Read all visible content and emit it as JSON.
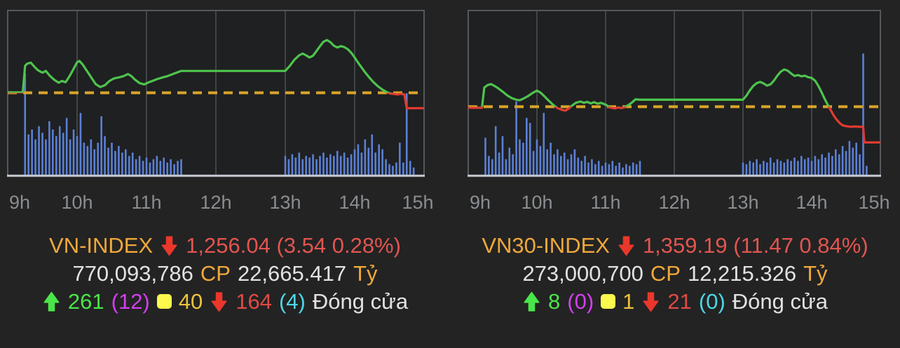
{
  "page": {
    "background": "#232323"
  },
  "colors": {
    "page_bg": "#232323",
    "chart_bg": "#1f2021",
    "border": "#55585c",
    "grid": "#4e5054",
    "baseline": "#c9cdd6",
    "bar_blue": "#5b80d5",
    "line_green": "#4ec44e",
    "line_red": "#e23a32",
    "dash_yellow": "#d9a52a",
    "axis_label": "#8a8d91",
    "orange": "#f0a83c",
    "red_text": "#e25550",
    "red_icon": "#ea372b",
    "white": "#e2e2e2",
    "green": "#49e549",
    "magenta": "#d33ff0",
    "yellow_square": "#fcf84e",
    "yellow_text": "#eac33d",
    "red_number": "#e04a44",
    "cyan": "#4cd6e6"
  },
  "panels": [
    {
      "index_label": "VN-INDEX",
      "direction": "down",
      "change_text": "1,256.04 (3.54 0.28%)",
      "shares": "770,093,786",
      "shares_unit": "CP",
      "value": "22,665.417",
      "value_unit": "Tỷ",
      "advancers": "261",
      "ceiling": "(12)",
      "unchanged": "40",
      "decliners": "164",
      "floor": "(4)",
      "session": "Đóng cửa"
    },
    {
      "index_label": "VN30-INDEX",
      "direction": "down",
      "change_text": "1,359.19 (11.47 0.84%)",
      "shares": "273,000,700",
      "shares_unit": "CP",
      "value": "12,215.326",
      "value_unit": "Tỷ",
      "advancers": "8",
      "ceiling": "(0)",
      "unchanged": "1",
      "decliners": "21",
      "floor": "(0)",
      "session": "Đóng cửa"
    }
  ],
  "chart_data": [
    {
      "type": "line",
      "title": "VN-INDEX intraday",
      "x_unit": "minutes_after_9h",
      "x_range": [
        0,
        360
      ],
      "hours": [
        "9h",
        "10h",
        "11h",
        "12h",
        "13h",
        "14h",
        "15h"
      ],
      "grid": "vertical-hourly",
      "legend": "none",
      "ref_value": 1259.58,
      "close": 1256.04,
      "ylim": [
        1240.5,
        1278.5
      ],
      "volume_unit": "fraction_of_plot_height",
      "price": [
        [
          0,
          1259.7
        ],
        [
          13,
          1259.7
        ],
        [
          15,
          1265.8
        ],
        [
          17,
          1266.3
        ],
        [
          20,
          1266.5
        ],
        [
          23,
          1265.6
        ],
        [
          26,
          1264.8
        ],
        [
          30,
          1264.2
        ],
        [
          33,
          1264.6
        ],
        [
          36,
          1263.6
        ],
        [
          40,
          1262.6
        ],
        [
          44,
          1261.9
        ],
        [
          47,
          1262.3
        ],
        [
          50,
          1262.0
        ],
        [
          53,
          1263.2
        ],
        [
          56,
          1264.6
        ],
        [
          60,
          1266.6
        ],
        [
          62,
          1266.9
        ],
        [
          65,
          1266.0
        ],
        [
          68,
          1264.8
        ],
        [
          72,
          1263.2
        ],
        [
          76,
          1261.6
        ],
        [
          80,
          1260.9
        ],
        [
          84,
          1261.3
        ],
        [
          88,
          1262.3
        ],
        [
          92,
          1262.9
        ],
        [
          96,
          1263.1
        ],
        [
          100,
          1263.4
        ],
        [
          104,
          1263.9
        ],
        [
          107,
          1263.4
        ],
        [
          110,
          1262.6
        ],
        [
          114,
          1261.8
        ],
        [
          118,
          1261.5
        ],
        [
          122,
          1262.0
        ],
        [
          126,
          1262.4
        ],
        [
          130,
          1262.8
        ],
        [
          134,
          1263.1
        ],
        [
          138,
          1263.4
        ],
        [
          142,
          1263.8
        ],
        [
          146,
          1264.2
        ],
        [
          150,
          1264.6
        ],
        [
          240,
          1264.6
        ],
        [
          244,
          1265.8
        ],
        [
          248,
          1267.2
        ],
        [
          252,
          1268.2
        ],
        [
          255,
          1268.6
        ],
        [
          258,
          1268.2
        ],
        [
          261,
          1267.7
        ],
        [
          264,
          1268.1
        ],
        [
          267,
          1269.2
        ],
        [
          270,
          1270.3
        ],
        [
          273,
          1271.3
        ],
        [
          276,
          1271.7
        ],
        [
          279,
          1271.2
        ],
        [
          282,
          1270.4
        ],
        [
          285,
          1270.0
        ],
        [
          288,
          1270.3
        ],
        [
          291,
          1270.1
        ],
        [
          294,
          1269.6
        ],
        [
          297,
          1268.8
        ],
        [
          300,
          1267.7
        ],
        [
          303,
          1266.5
        ],
        [
          306,
          1265.4
        ],
        [
          309,
          1264.3
        ],
        [
          312,
          1263.3
        ],
        [
          316,
          1262.1
        ],
        [
          320,
          1261.1
        ],
        [
          324,
          1260.3
        ],
        [
          328,
          1259.7
        ],
        [
          331,
          1259.4
        ],
        [
          334,
          1259.3
        ],
        [
          337,
          1259.2
        ],
        [
          340,
          1259.35
        ],
        [
          343,
          1259.2
        ],
        [
          345,
          1256.04
        ],
        [
          360,
          1256.04
        ]
      ],
      "volume": [
        [
          15,
          0.62
        ],
        [
          18,
          0.25
        ],
        [
          21,
          0.28
        ],
        [
          24,
          0.22
        ],
        [
          27,
          0.3
        ],
        [
          30,
          0.26
        ],
        [
          33,
          0.22
        ],
        [
          36,
          0.33
        ],
        [
          39,
          0.28
        ],
        [
          42,
          0.24
        ],
        [
          45,
          0.3
        ],
        [
          48,
          0.26
        ],
        [
          51,
          0.35
        ],
        [
          54,
          0.22
        ],
        [
          57,
          0.28
        ],
        [
          60,
          0.24
        ],
        [
          63,
          0.38
        ],
        [
          66,
          0.2
        ],
        [
          69,
          0.18
        ],
        [
          72,
          0.22
        ],
        [
          75,
          0.16
        ],
        [
          78,
          0.2
        ],
        [
          81,
          0.36
        ],
        [
          84,
          0.24
        ],
        [
          87,
          0.17
        ],
        [
          90,
          0.2
        ],
        [
          93,
          0.15
        ],
        [
          96,
          0.18
        ],
        [
          99,
          0.14
        ],
        [
          102,
          0.16
        ],
        [
          105,
          0.12
        ],
        [
          108,
          0.14
        ],
        [
          111,
          0.1
        ],
        [
          114,
          0.12
        ],
        [
          117,
          0.09
        ],
        [
          120,
          0.11
        ],
        [
          123,
          0.08
        ],
        [
          126,
          0.1
        ],
        [
          129,
          0.12
        ],
        [
          132,
          0.09
        ],
        [
          135,
          0.11
        ],
        [
          138,
          0.08
        ],
        [
          141,
          0.1
        ],
        [
          144,
          0.07
        ],
        [
          147,
          0.09
        ],
        [
          150,
          0.1
        ],
        [
          240,
          0.12
        ],
        [
          243,
          0.1
        ],
        [
          246,
          0.13
        ],
        [
          249,
          0.11
        ],
        [
          252,
          0.14
        ],
        [
          255,
          0.1
        ],
        [
          258,
          0.12
        ],
        [
          261,
          0.11
        ],
        [
          264,
          0.13
        ],
        [
          267,
          0.1
        ],
        [
          270,
          0.12
        ],
        [
          273,
          0.14
        ],
        [
          276,
          0.11
        ],
        [
          279,
          0.13
        ],
        [
          282,
          0.12
        ],
        [
          285,
          0.15
        ],
        [
          288,
          0.12
        ],
        [
          291,
          0.14
        ],
        [
          294,
          0.11
        ],
        [
          297,
          0.13
        ],
        [
          300,
          0.16
        ],
        [
          303,
          0.19
        ],
        [
          306,
          0.14
        ],
        [
          309,
          0.22
        ],
        [
          312,
          0.17
        ],
        [
          315,
          0.25
        ],
        [
          318,
          0.14
        ],
        [
          321,
          0.19
        ],
        [
          324,
          0.16
        ],
        [
          327,
          0.1
        ],
        [
          330,
          0.07
        ],
        [
          333,
          0.06
        ],
        [
          336,
          0.08
        ],
        [
          339,
          0.2
        ],
        [
          342,
          0.08
        ],
        [
          345,
          0.5
        ],
        [
          348,
          0.09
        ],
        [
          351,
          0.05
        ]
      ]
    },
    {
      "type": "line",
      "title": "VN30-INDEX intraday",
      "x_unit": "minutes_after_9h",
      "x_range": [
        0,
        360
      ],
      "hours": [
        "9h",
        "10h",
        "11h",
        "12h",
        "13h",
        "14h",
        "15h"
      ],
      "grid": "vertical-hourly",
      "legend": "none",
      "ref_value": 1370.66,
      "close": 1359.19,
      "ylim": [
        1348.5,
        1401.5
      ],
      "volume_unit": "fraction_of_plot_height",
      "price": [
        [
          0,
          1370.3
        ],
        [
          12,
          1370.3
        ],
        [
          14,
          1376.8
        ],
        [
          17,
          1377.6
        ],
        [
          20,
          1377.9
        ],
        [
          23,
          1377.3
        ],
        [
          26,
          1376.6
        ],
        [
          30,
          1375.5
        ],
        [
          34,
          1374.3
        ],
        [
          38,
          1373.4
        ],
        [
          42,
          1372.9
        ],
        [
          45,
          1372.7
        ],
        [
          48,
          1373.2
        ],
        [
          52,
          1374.0
        ],
        [
          56,
          1375.0
        ],
        [
          60,
          1375.8
        ],
        [
          63,
          1375.2
        ],
        [
          66,
          1374.2
        ],
        [
          70,
          1372.7
        ],
        [
          74,
          1371.3
        ],
        [
          78,
          1370.2
        ],
        [
          82,
          1369.6
        ],
        [
          85,
          1369.4
        ],
        [
          88,
          1370.1
        ],
        [
          91,
          1371.1
        ],
        [
          94,
          1371.9
        ],
        [
          98,
          1372.3
        ],
        [
          101,
          1371.9
        ],
        [
          104,
          1372.2
        ],
        [
          107,
          1371.7
        ],
        [
          110,
          1372.1
        ],
        [
          113,
          1371.6
        ],
        [
          116,
          1371.9
        ],
        [
          120,
          1371.3
        ],
        [
          124,
          1370.4
        ],
        [
          128,
          1370.1
        ],
        [
          131,
          1370.4
        ],
        [
          134,
          1370.2
        ],
        [
          137,
          1370.6
        ],
        [
          140,
          1371.2
        ],
        [
          143,
          1372.0
        ],
        [
          146,
          1373.0
        ],
        [
          150,
          1372.9
        ],
        [
          240,
          1372.9
        ],
        [
          243,
          1374.2
        ],
        [
          246,
          1375.9
        ],
        [
          249,
          1377.3
        ],
        [
          252,
          1378.2
        ],
        [
          255,
          1378.6
        ],
        [
          258,
          1378.1
        ],
        [
          261,
          1377.4
        ],
        [
          264,
          1377.8
        ],
        [
          267,
          1379.0
        ],
        [
          270,
          1380.6
        ],
        [
          273,
          1381.9
        ],
        [
          276,
          1382.6
        ],
        [
          279,
          1382.2
        ],
        [
          282,
          1381.3
        ],
        [
          285,
          1380.5
        ],
        [
          288,
          1380.8
        ],
        [
          291,
          1380.4
        ],
        [
          294,
          1380.6
        ],
        [
          297,
          1380.1
        ],
        [
          300,
          1379.9
        ],
        [
          303,
          1379.0
        ],
        [
          306,
          1377.2
        ],
        [
          309,
          1375.0
        ],
        [
          311,
          1373.4
        ],
        [
          313,
          1372.0
        ],
        [
          315,
          1370.6
        ],
        [
          317,
          1369.3
        ],
        [
          319,
          1368.0
        ],
        [
          321,
          1366.9
        ],
        [
          323,
          1366.0
        ],
        [
          325,
          1365.2
        ],
        [
          327,
          1364.7
        ],
        [
          330,
          1364.4
        ],
        [
          334,
          1364.2
        ],
        [
          338,
          1364.3
        ],
        [
          342,
          1364.2
        ],
        [
          345,
          1364.2
        ],
        [
          346,
          1359.19
        ],
        [
          360,
          1359.19
        ]
      ],
      "volume": [
        [
          15,
          0.23
        ],
        [
          18,
          0.12
        ],
        [
          21,
          0.1
        ],
        [
          24,
          0.3
        ],
        [
          27,
          0.14
        ],
        [
          30,
          0.24
        ],
        [
          33,
          0.1
        ],
        [
          36,
          0.17
        ],
        [
          39,
          0.13
        ],
        [
          42,
          0.45
        ],
        [
          45,
          0.22
        ],
        [
          48,
          0.2
        ],
        [
          51,
          0.35
        ],
        [
          54,
          0.32
        ],
        [
          57,
          0.15
        ],
        [
          60,
          0.22
        ],
        [
          63,
          0.18
        ],
        [
          66,
          0.38
        ],
        [
          69,
          0.16
        ],
        [
          72,
          0.2
        ],
        [
          75,
          0.13
        ],
        [
          78,
          0.16
        ],
        [
          81,
          0.12
        ],
        [
          84,
          0.14
        ],
        [
          87,
          0.1
        ],
        [
          90,
          0.13
        ],
        [
          93,
          0.16
        ],
        [
          96,
          0.11
        ],
        [
          99,
          0.09
        ],
        [
          102,
          0.12
        ],
        [
          105,
          0.08
        ],
        [
          108,
          0.1
        ],
        [
          111,
          0.07
        ],
        [
          114,
          0.09
        ],
        [
          117,
          0.06
        ],
        [
          120,
          0.08
        ],
        [
          123,
          0.07
        ],
        [
          126,
          0.09
        ],
        [
          129,
          0.06
        ],
        [
          132,
          0.08
        ],
        [
          135,
          0.05
        ],
        [
          138,
          0.07
        ],
        [
          141,
          0.06
        ],
        [
          144,
          0.08
        ],
        [
          147,
          0.07
        ],
        [
          150,
          0.09
        ],
        [
          240,
          0.08
        ],
        [
          243,
          0.07
        ],
        [
          246,
          0.09
        ],
        [
          249,
          0.08
        ],
        [
          252,
          0.1
        ],
        [
          255,
          0.07
        ],
        [
          258,
          0.09
        ],
        [
          261,
          0.08
        ],
        [
          264,
          0.11
        ],
        [
          267,
          0.08
        ],
        [
          270,
          0.1
        ],
        [
          273,
          0.09
        ],
        [
          276,
          0.08
        ],
        [
          279,
          0.1
        ],
        [
          282,
          0.09
        ],
        [
          285,
          0.11
        ],
        [
          288,
          0.09
        ],
        [
          291,
          0.12
        ],
        [
          294,
          0.1
        ],
        [
          297,
          0.11
        ],
        [
          300,
          0.09
        ],
        [
          303,
          0.12
        ],
        [
          306,
          0.1
        ],
        [
          309,
          0.13
        ],
        [
          312,
          0.11
        ],
        [
          315,
          0.14
        ],
        [
          318,
          0.12
        ],
        [
          321,
          0.16
        ],
        [
          324,
          0.13
        ],
        [
          327,
          0.18
        ],
        [
          330,
          0.15
        ],
        [
          333,
          0.21
        ],
        [
          336,
          0.17
        ],
        [
          339,
          0.2
        ],
        [
          342,
          0.13
        ],
        [
          345,
          0.74
        ],
        [
          348,
          0.06
        ]
      ]
    }
  ]
}
